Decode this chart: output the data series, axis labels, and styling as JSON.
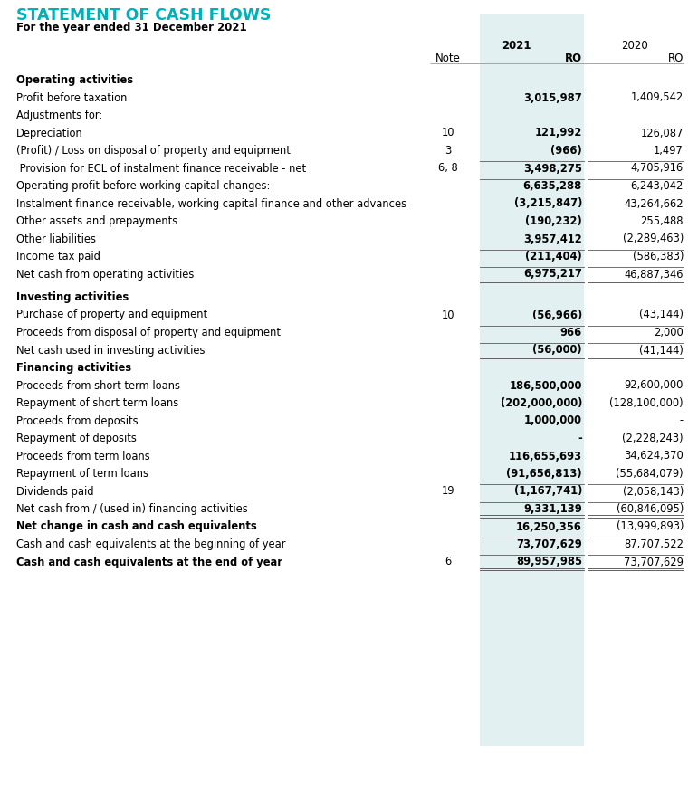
{
  "title": "STATEMENT OF CASH FLOWS",
  "subtitle": "For the year ended 31 December 2021",
  "title_color": "#00B0B9",
  "subtitle_color": "#000000",
  "highlight_col_bg": "#E2F0F1",
  "rows": [
    {
      "label": "Operating activities",
      "note": "",
      "v2021": "",
      "v2020": "",
      "bold": true,
      "section_header": true,
      "extra_top": true
    },
    {
      "label": "Profit before taxation",
      "note": "",
      "v2021": "3,015,987",
      "v2020": "1,409,542",
      "bold": false,
      "v2021_bold": true
    },
    {
      "label": "Adjustments for:",
      "note": "",
      "v2021": "",
      "v2020": "",
      "bold": false
    },
    {
      "label": "Depreciation",
      "note": "10",
      "v2021": "121,992",
      "v2020": "126,087",
      "bold": false,
      "v2021_bold": true
    },
    {
      "label": "(Profit) / Loss on disposal of property and equipment",
      "note": "3",
      "v2021": "(966)",
      "v2020": "1,497",
      "bold": false,
      "v2021_bold": true
    },
    {
      "label": " Provision for ECL of instalment finance receivable - net",
      "note": "6, 8",
      "v2021": "3,498,275",
      "v2020": "4,705,916",
      "bold": false,
      "v2021_bold": true,
      "topline": true
    },
    {
      "label": "Operating profit before working capital changes:",
      "note": "",
      "v2021": "6,635,288",
      "v2020": "6,243,042",
      "bold": false,
      "v2021_bold": true,
      "topline": true
    },
    {
      "label": "Instalment finance receivable, working capital finance and other advances",
      "note": "",
      "v2021": "(3,215,847)",
      "v2020": "43,264,662",
      "bold": false,
      "v2021_bold": true
    },
    {
      "label": "Other assets and prepayments",
      "note": "",
      "v2021": "(190,232)",
      "v2020": "255,488",
      "bold": false,
      "v2021_bold": true
    },
    {
      "label": "Other liabilities",
      "note": "",
      "v2021": "3,957,412",
      "v2020": "(2,289,463)",
      "bold": false,
      "v2021_bold": true
    },
    {
      "label": "Income tax paid",
      "note": "",
      "v2021": "(211,404)",
      "v2020": "(586,383)",
      "bold": false,
      "v2021_bold": true,
      "topline": true
    },
    {
      "label": "Net cash from operating activities",
      "note": "",
      "v2021": "6,975,217",
      "v2020": "46,887,346",
      "bold": false,
      "v2021_bold": true,
      "topline": true,
      "double_underline": true
    },
    {
      "label": "Investing activities",
      "note": "",
      "v2021": "",
      "v2020": "",
      "bold": true,
      "section_header": true,
      "extra_top": true
    },
    {
      "label": "Purchase of property and equipment",
      "note": "10",
      "v2021": "(56,966)",
      "v2020": "(43,144)",
      "bold": false,
      "v2021_bold": true
    },
    {
      "label": "Proceeds from disposal of property and equipment",
      "note": "",
      "v2021": "966",
      "v2020": "2,000",
      "bold": false,
      "v2021_bold": true,
      "topline": true
    },
    {
      "label": "Net cash used in investing activities",
      "note": "",
      "v2021": "(56,000)",
      "v2020": "(41,144)",
      "bold": false,
      "v2021_bold": true,
      "topline": true,
      "double_underline": true
    },
    {
      "label": "Financing activities",
      "note": "",
      "v2021": "",
      "v2020": "",
      "bold": true,
      "section_header": true,
      "extra_top": false
    },
    {
      "label": "Proceeds from short term loans",
      "note": "",
      "v2021": "186,500,000",
      "v2020": "92,600,000",
      "bold": false,
      "v2021_bold": true
    },
    {
      "label": "Repayment of short term loans",
      "note": "",
      "v2021": "(202,000,000)",
      "v2020": "(128,100,000)",
      "bold": false,
      "v2021_bold": true
    },
    {
      "label": "Proceeds from deposits",
      "note": "",
      "v2021": "1,000,000",
      "v2020": "-",
      "bold": false,
      "v2021_bold": true
    },
    {
      "label": "Repayment of deposits",
      "note": "",
      "v2021": "-",
      "v2020": "(2,228,243)",
      "bold": false,
      "v2021_bold": true
    },
    {
      "label": "Proceeds from term loans",
      "note": "",
      "v2021": "116,655,693",
      "v2020": "34,624,370",
      "bold": false,
      "v2021_bold": true
    },
    {
      "label": "Repayment of term loans",
      "note": "",
      "v2021": "(91,656,813)",
      "v2020": "(55,684,079)",
      "bold": false,
      "v2021_bold": true
    },
    {
      "label": "Dividends paid",
      "note": "19",
      "v2021": "(1,167,741)",
      "v2020": "(2,058,143)",
      "bold": false,
      "v2021_bold": true,
      "topline": true
    },
    {
      "label": "Net cash from / (used in) financing activities",
      "note": "",
      "v2021": "9,331,139",
      "v2020": "(60,846,095)",
      "bold": false,
      "v2021_bold": true,
      "topline": true,
      "double_underline": true
    },
    {
      "label": "Net change in cash and cash equivalents",
      "note": "",
      "v2021": "16,250,356",
      "v2020": "(13,999,893)",
      "bold": true,
      "v2021_bold": true
    },
    {
      "label": "Cash and cash equivalents at the beginning of year",
      "note": "",
      "v2021": "73,707,629",
      "v2020": "87,707,522",
      "bold": false,
      "v2021_bold": true,
      "topline": true
    },
    {
      "label": "Cash and cash equivalents at the end of year",
      "note": "6",
      "v2021": "89,957,985",
      "v2020": "73,707,629",
      "bold": true,
      "v2021_bold": true,
      "topline": true,
      "double_underline": true
    }
  ]
}
